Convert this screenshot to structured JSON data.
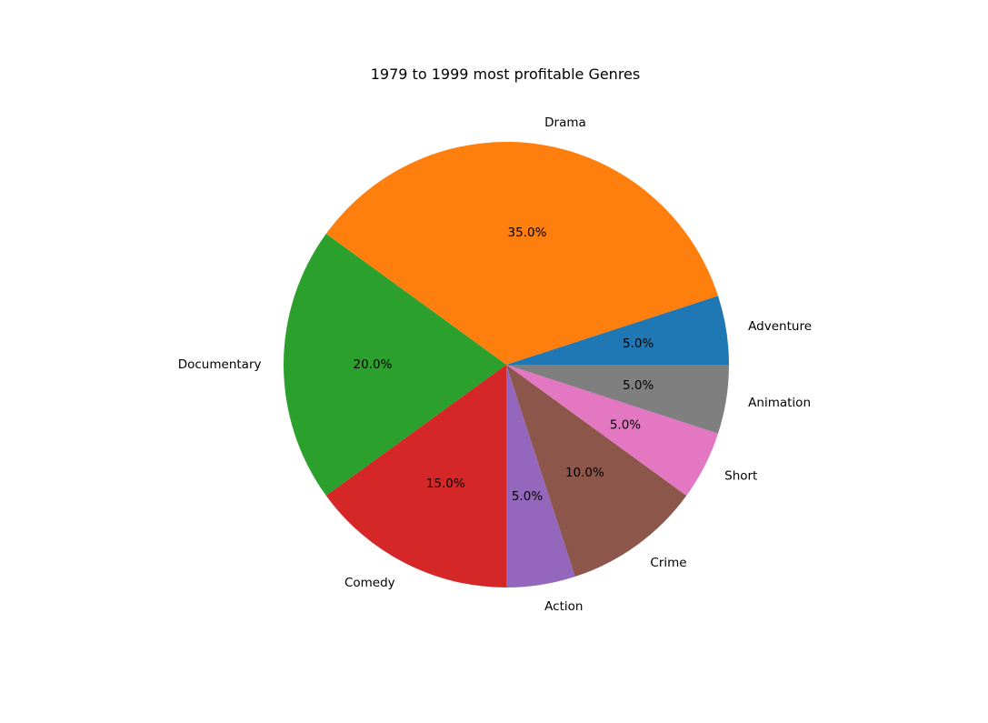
{
  "chart_data": {
    "type": "pie",
    "title": "1979 to 1999 most profitable Genres",
    "start_angle_deg": 0,
    "direction": "counterclockwise",
    "autopct_format": "{v}%",
    "slices": [
      {
        "label": "Adventure",
        "value": 5.0,
        "pct_text": "5.0%",
        "color": "#1f77b4"
      },
      {
        "label": "Drama",
        "value": 35.0,
        "pct_text": "35.0%",
        "color": "#ff7f0e"
      },
      {
        "label": "Documentary",
        "value": 20.0,
        "pct_text": "20.0%",
        "color": "#2ca02c"
      },
      {
        "label": "Comedy",
        "value": 15.0,
        "pct_text": "15.0%",
        "color": "#d62728"
      },
      {
        "label": "Action",
        "value": 5.0,
        "pct_text": "5.0%",
        "color": "#9467bd"
      },
      {
        "label": "Crime",
        "value": 10.0,
        "pct_text": "10.0%",
        "color": "#8c564b"
      },
      {
        "label": "Short",
        "value": 5.0,
        "pct_text": "5.0%",
        "color": "#e377c2"
      },
      {
        "label": "Animation",
        "value": 5.0,
        "pct_text": "5.0%",
        "color": "#7f7f7f"
      }
    ]
  }
}
